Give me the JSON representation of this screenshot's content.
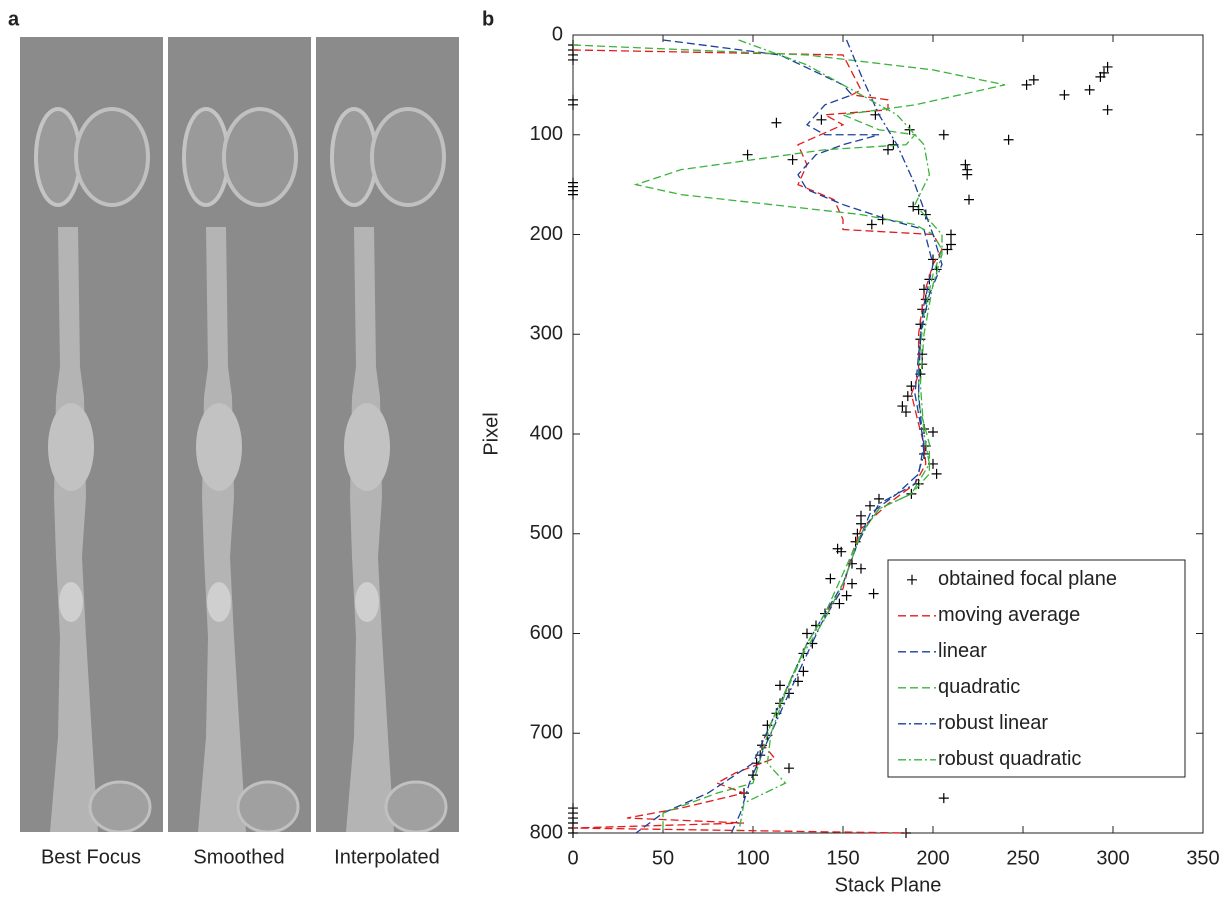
{
  "panels": {
    "a": {
      "label": "a",
      "captions": [
        "Best Focus",
        "Smoothed",
        "Interpolated"
      ]
    },
    "b": {
      "label": "b"
    }
  },
  "chart_data": {
    "type": "line",
    "xlabel": "Stack Plane",
    "ylabel": "Pixel",
    "xlim": [
      0,
      350
    ],
    "xticks": [
      0,
      50,
      100,
      150,
      200,
      250,
      300,
      350
    ],
    "ylim": [
      0,
      800
    ],
    "yticks": [
      0,
      100,
      200,
      300,
      400,
      500,
      600,
      700,
      800
    ],
    "y_reversed": true,
    "legend": "lower right",
    "series": [
      {
        "name": "obtained focal plane",
        "type": "scatter",
        "color": "#000000",
        "x": [
          0,
          0,
          0,
          0,
          0,
          0,
          0,
          0,
          0,
          0,
          297,
          295,
          293,
          256,
          252,
          287,
          273,
          297,
          242,
          206,
          187,
          138,
          113,
          168,
          97,
          122,
          175,
          178,
          218,
          219,
          219,
          220,
          196,
          189,
          192,
          172,
          166,
          210,
          210,
          208,
          200,
          202,
          198,
          195,
          196,
          194,
          193,
          193,
          194,
          194,
          193,
          188,
          186,
          183,
          185,
          195,
          200,
          196,
          195,
          200,
          202,
          192,
          188,
          170,
          165,
          160,
          160,
          158,
          157,
          147,
          149,
          155,
          160,
          143,
          155,
          152,
          167,
          148,
          140,
          135,
          130,
          133,
          128,
          128,
          125,
          115,
          120,
          115,
          113,
          108,
          108,
          105,
          104,
          102,
          120,
          100,
          95,
          206,
          185,
          0,
          0,
          0,
          0,
          0,
          0
        ],
        "values": [
          10,
          15,
          20,
          25,
          65,
          70,
          148,
          152,
          156,
          160,
          32,
          38,
          42,
          45,
          50,
          55,
          60,
          75,
          105,
          100,
          95,
          85,
          88,
          80,
          120,
          125,
          115,
          110,
          130,
          135,
          140,
          165,
          180,
          172,
          175,
          185,
          190,
          200,
          210,
          215,
          225,
          235,
          245,
          255,
          265,
          275,
          290,
          305,
          320,
          330,
          340,
          352,
          362,
          372,
          378,
          395,
          398,
          412,
          420,
          430,
          440,
          450,
          460,
          465,
          472,
          482,
          490,
          500,
          508,
          515,
          518,
          530,
          535,
          545,
          550,
          562,
          560,
          570,
          580,
          592,
          600,
          610,
          620,
          638,
          648,
          652,
          660,
          670,
          680,
          692,
          702,
          712,
          722,
          730,
          735,
          742,
          760,
          765,
          800,
          775,
          780,
          785,
          790,
          795,
          800
        ]
      },
      {
        "name": "moving average",
        "type": "line",
        "dash": "dashed",
        "color": "#e41a1c",
        "x": [
          0,
          150,
          160,
          155,
          175,
          175,
          140,
          150,
          125,
          130,
          125,
          145,
          150,
          150,
          200,
          205,
          200,
          195,
          192,
          192,
          188,
          192,
          195,
          196,
          190,
          175,
          160,
          155,
          150,
          140,
          130,
          120,
          110,
          105,
          112,
          90,
          80,
          95,
          60,
          30,
          95,
          0,
          185
        ],
        "values": [
          15,
          20,
          55,
          60,
          65,
          75,
          80,
          90,
          110,
          130,
          150,
          165,
          185,
          195,
          200,
          215,
          230,
          260,
          300,
          340,
          360,
          390,
          410,
          430,
          450,
          470,
          495,
          520,
          555,
          580,
          610,
          650,
          690,
          710,
          725,
          740,
          750,
          760,
          775,
          785,
          790,
          795,
          800
        ]
      },
      {
        "name": "linear",
        "type": "line",
        "dash": "dashed",
        "color": "#1c3f9c",
        "x": [
          50,
          115,
          150,
          155,
          140,
          130,
          140,
          170,
          150,
          135,
          125,
          130,
          150,
          175,
          195,
          200,
          195,
          192,
          190,
          195,
          192,
          180,
          165,
          158,
          150,
          140,
          130,
          120,
          110,
          100,
          75,
          50,
          35
        ],
        "values": [
          5,
          20,
          50,
          60,
          70,
          90,
          100,
          100,
          110,
          120,
          140,
          155,
          170,
          185,
          195,
          230,
          270,
          320,
          360,
          410,
          440,
          460,
          480,
          510,
          550,
          580,
          610,
          650,
          690,
          730,
          760,
          780,
          800
        ]
      },
      {
        "name": "quadratic",
        "type": "line",
        "dash": "dashed",
        "color": "#3cb33c",
        "x": [
          0,
          130,
          200,
          240,
          190,
          150,
          170,
          190,
          185,
          140,
          100,
          60,
          35,
          60,
          110,
          160,
          190,
          200,
          205,
          200,
          195,
          192,
          192,
          198,
          198,
          188,
          170,
          160,
          150,
          140,
          130,
          120,
          110,
          105,
          100,
          80,
          50,
          50
        ],
        "values": [
          10,
          20,
          35,
          50,
          70,
          80,
          95,
          100,
          110,
          115,
          125,
          135,
          150,
          160,
          170,
          180,
          190,
          200,
          215,
          240,
          280,
          330,
          370,
          410,
          440,
          460,
          475,
          500,
          540,
          580,
          610,
          650,
          690,
          720,
          750,
          760,
          780,
          800
        ]
      },
      {
        "name": "robust linear",
        "type": "line",
        "dash": "dashdot",
        "color": "#1c3f9c",
        "x": [
          152,
          160,
          170,
          180,
          190,
          200,
          205,
          198,
          193,
          192,
          195,
          190,
          170,
          158,
          148,
          138,
          125,
          115,
          105,
          98,
          93,
          88
        ],
        "values": [
          5,
          40,
          80,
          110,
          150,
          200,
          230,
          260,
          300,
          360,
          420,
          450,
          470,
          510,
          560,
          590,
          640,
          680,
          720,
          750,
          780,
          800
        ]
      },
      {
        "name": "robust quadratic",
        "type": "line",
        "dash": "dashdot",
        "color": "#3cb33c",
        "x": [
          92,
          130,
          160,
          180,
          195,
          198,
          190,
          205,
          205,
          200,
          195,
          193,
          195,
          198,
          188,
          170,
          160,
          150,
          140,
          128,
          118,
          110,
          108,
          118,
          95,
          92
        ],
        "values": [
          5,
          30,
          60,
          80,
          110,
          140,
          170,
          200,
          220,
          250,
          300,
          350,
          400,
          430,
          460,
          475,
          500,
          550,
          585,
          620,
          660,
          700,
          730,
          750,
          770,
          800
        ]
      }
    ]
  }
}
